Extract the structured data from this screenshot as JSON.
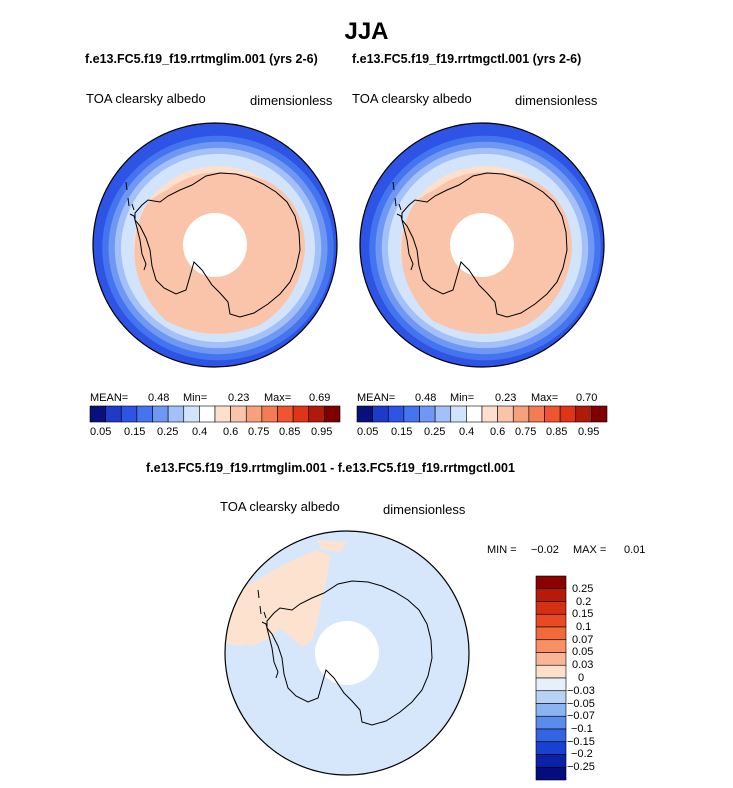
{
  "page_title": "JJA",
  "chart_data": [
    {
      "type": "heatmap",
      "projection": "south-polar-stereographic",
      "title": "f.e13.FC5.f19_f19.rrtmglim.001 (yrs 2-6)",
      "left_label": "TOA clearsky albedo",
      "right_label": "dimensionless",
      "stats": {
        "mean_label": "MEAN=",
        "mean": "0.48",
        "min_label": "Min=",
        "min": "0.23",
        "max_label": "Max=",
        "max": "0.69"
      },
      "colorbar": {
        "orientation": "horizontal",
        "levels": [
          "0.05",
          "0.15",
          "0.25",
          "0.4",
          "0.6",
          "0.75",
          "0.85",
          "0.95"
        ],
        "colors": [
          "#08107c",
          "#1e3ac8",
          "#2e54e6",
          "#4575ee",
          "#6e98f4",
          "#a3c0f8",
          "#d2e3fc",
          "#ffffff",
          "#fde0cc",
          "#fac4aa",
          "#f7a07c",
          "#f47c55",
          "#ee5530",
          "#e03418",
          "#b01a08",
          "#800000"
        ]
      },
      "rings": [
        {
          "value": 0.3,
          "color": "#4575ee"
        },
        {
          "value": 0.35,
          "color": "#6e98f4"
        },
        {
          "value": 0.4,
          "color": "#a3c0f8"
        },
        {
          "value": 0.45,
          "color": "#d2e3fc"
        },
        {
          "value": 0.55,
          "color": "#fde0cc"
        },
        {
          "value": 0.6,
          "color": "#fac4aa"
        }
      ]
    },
    {
      "type": "heatmap",
      "projection": "south-polar-stereographic",
      "title": "f.e13.FC5.f19_f19.rrtmgctl.001 (yrs 2-6)",
      "left_label": "TOA clearsky albedo",
      "right_label": "dimensionless",
      "stats": {
        "mean_label": "MEAN=",
        "mean": "0.48",
        "min_label": "Min=",
        "min": "0.23",
        "max_label": "Max=",
        "max": "0.70"
      },
      "colorbar": {
        "orientation": "horizontal",
        "levels": [
          "0.05",
          "0.15",
          "0.25",
          "0.4",
          "0.6",
          "0.75",
          "0.85",
          "0.95"
        ],
        "colors": [
          "#08107c",
          "#1e3ac8",
          "#2e54e6",
          "#4575ee",
          "#6e98f4",
          "#a3c0f8",
          "#d2e3fc",
          "#ffffff",
          "#fde0cc",
          "#fac4aa",
          "#f7a07c",
          "#f47c55",
          "#ee5530",
          "#e03418",
          "#b01a08",
          "#800000"
        ]
      },
      "rings": [
        {
          "value": 0.3,
          "color": "#4575ee"
        },
        {
          "value": 0.35,
          "color": "#6e98f4"
        },
        {
          "value": 0.4,
          "color": "#a3c0f8"
        },
        {
          "value": 0.45,
          "color": "#d2e3fc"
        },
        {
          "value": 0.55,
          "color": "#fde0cc"
        },
        {
          "value": 0.6,
          "color": "#fac4aa"
        }
      ]
    },
    {
      "type": "heatmap",
      "projection": "south-polar-stereographic",
      "title": "f.e13.FC5.f19_f19.rrtmglim.001 - f.e13.FC5.f19_f19.rrtmgctl.001",
      "left_label": "TOA clearsky albedo",
      "right_label": "dimensionless",
      "stats": {
        "min_label": "MIN =",
        "min": "−0.02",
        "max_label": "MAX =",
        "max": "0.01"
      },
      "colorbar": {
        "orientation": "vertical",
        "levels": [
          "0.25",
          "0.2",
          "0.15",
          "0.1",
          "0.07",
          "0.05",
          "0.03",
          "0",
          "−0.03",
          "−0.05",
          "−0.07",
          "−0.1",
          "−0.15",
          "−0.2",
          "−0.25"
        ],
        "colors": [
          "#8b0000",
          "#b81a0a",
          "#d63013",
          "#ea4a23",
          "#f26a3a",
          "#f79065",
          "#fab596",
          "#fde0cc",
          "#e6f0fb",
          "#b8d2f6",
          "#8cb3f2",
          "#5a8cec",
          "#3264e4",
          "#1a40d0",
          "#0a22a8",
          "#050c80"
        ]
      }
    }
  ]
}
